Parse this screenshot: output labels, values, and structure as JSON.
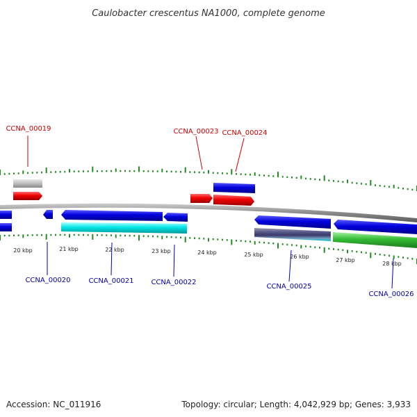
{
  "title": "Caulobacter crescentus NA1000, complete genome",
  "footer": {
    "accession": "Accession: NC_011916",
    "summary": "Topology: circular; Length: 4,042,929 bp; Genes: 3,933"
  },
  "colors": {
    "forward_label": "#cc0000",
    "reverse_label": "#0000aa",
    "cds_red": "#ee0000",
    "cds_blue": "#0000dd",
    "rna_cyan": "#00e5e5",
    "gray_feature": "#b8b8b8",
    "green_feature": "#33bb33",
    "tick_green": "#228B22",
    "backbone": "#888888"
  },
  "ticks": [
    {
      "label": "20 kbp"
    },
    {
      "label": "21 kbp"
    },
    {
      "label": "22 kbp"
    },
    {
      "label": "23 kbp"
    },
    {
      "label": "24 kbp"
    },
    {
      "label": "25 kbp"
    },
    {
      "label": "26 kbp"
    },
    {
      "label": "27 kbp"
    },
    {
      "label": "28 kbp"
    }
  ],
  "genes_top": [
    {
      "label": "CCNA_00019"
    },
    {
      "label": "CCNA_00023"
    },
    {
      "label": "CCNA_00024"
    }
  ],
  "genes_bottom": [
    {
      "label": "CCNA_00020"
    },
    {
      "label": "CCNA_00021"
    },
    {
      "label": "CCNA_00022"
    },
    {
      "label": "CCNA_00025"
    },
    {
      "label": "CCNA_00026"
    }
  ]
}
